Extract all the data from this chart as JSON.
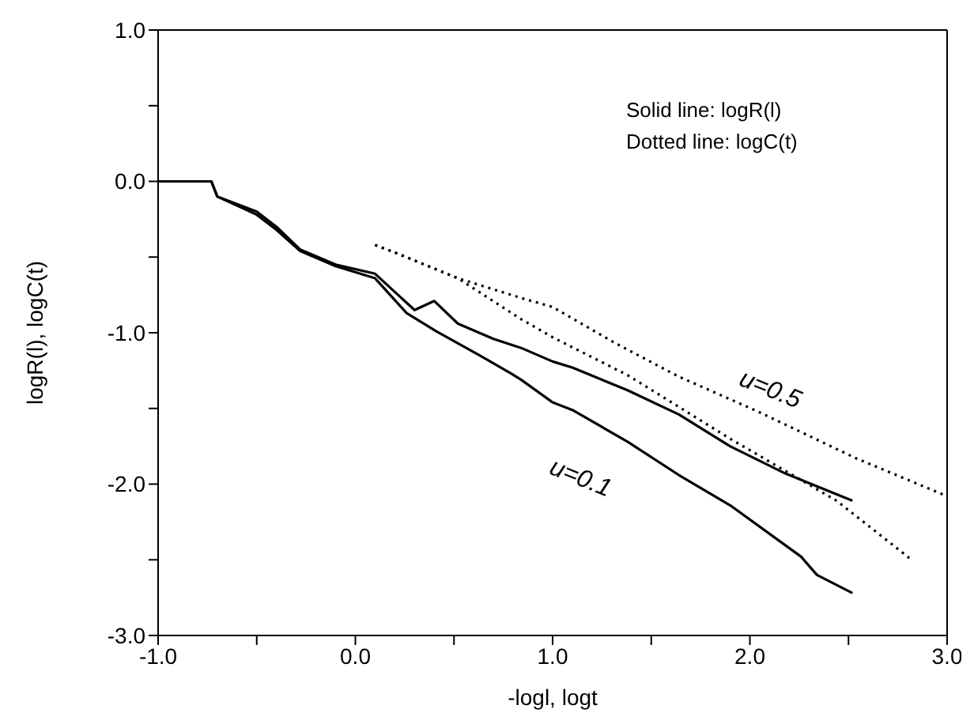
{
  "chart_data": {
    "type": "line",
    "xlabel": "-logl, logt",
    "ylabel": "logR(l), logC(t)",
    "xlim": [
      -1,
      3
    ],
    "ylim": [
      -3,
      1
    ],
    "xticks": [
      {
        "value": -1,
        "label": "-1.0"
      },
      {
        "value": -0.5,
        "label": null
      },
      {
        "value": 0,
        "label": "0.0"
      },
      {
        "value": 0.5,
        "label": null
      },
      {
        "value": 1,
        "label": "1.0"
      },
      {
        "value": 1.5,
        "label": null
      },
      {
        "value": 2,
        "label": "2.0"
      },
      {
        "value": 2.5,
        "label": null
      },
      {
        "value": 3,
        "label": "3.0"
      }
    ],
    "yticks": [
      {
        "value": -3,
        "label": "-3.0"
      },
      {
        "value": -2.5,
        "label": null
      },
      {
        "value": -2,
        "label": "-2.0"
      },
      {
        "value": -1.5,
        "label": null
      },
      {
        "value": -1,
        "label": "-1.0"
      },
      {
        "value": -0.5,
        "label": null
      },
      {
        "value": 0,
        "label": "0.0"
      },
      {
        "value": 0.5,
        "label": null
      },
      {
        "value": 1,
        "label": "1.0"
      }
    ],
    "marker": "none",
    "series": [
      {
        "color": "#000000",
        "line_style": "solid",
        "x": [
          -1,
          -0.73,
          -0.7,
          -0.6,
          -0.5,
          -0.4,
          -0.28,
          -0.1,
          0.1,
          0.3,
          0.4,
          0.52,
          0.7,
          0.84,
          1.0,
          1.1,
          1.38,
          1.64,
          1.9,
          2.18,
          2.52
        ],
        "values": [
          0,
          0,
          -0.1,
          -0.15,
          -0.2,
          -0.3,
          -0.45,
          -0.55,
          -0.61,
          -0.85,
          -0.79,
          -0.94,
          -1.04,
          -1.1,
          -1.19,
          -1.23,
          -1.38,
          -1.54,
          -1.75,
          -1.93,
          -2.11
        ]
      },
      {
        "color": "#000000",
        "line_style": "solid",
        "x": [
          -1,
          -0.73,
          -0.7,
          -0.6,
          -0.5,
          -0.4,
          -0.28,
          -0.1,
          0.1,
          0.26,
          0.41,
          0.63,
          0.79,
          0.84,
          1.0,
          1.1,
          1.38,
          1.64,
          1.9,
          2.26,
          2.34,
          2.52
        ],
        "values": [
          0,
          0,
          -0.1,
          -0.16,
          -0.22,
          -0.32,
          -0.46,
          -0.56,
          -0.64,
          -0.87,
          -0.99,
          -1.15,
          -1.27,
          -1.31,
          -1.46,
          -1.51,
          -1.72,
          -1.94,
          -2.14,
          -2.48,
          -2.6,
          -2.72
        ]
      },
      {
        "color": "#000000",
        "line_style": "dotted",
        "x": [
          0.1,
          0.22,
          0.52,
          0.84,
          1.0,
          1.32,
          1.64,
          2.04,
          2.54,
          3.0
        ],
        "values": [
          -0.42,
          -0.48,
          -0.64,
          -0.77,
          -0.83,
          -1.07,
          -1.29,
          -1.52,
          -1.83,
          -2.08
        ]
      },
      {
        "color": "#000000",
        "line_style": "dotted",
        "x": [
          0.1,
          0.22,
          0.52,
          0.84,
          1.0,
          1.38,
          1.9,
          2.44,
          2.82
        ],
        "values": [
          -0.42,
          -0.48,
          -0.64,
          -0.91,
          -1.03,
          -1.28,
          -1.7,
          -2.11,
          -2.5
        ]
      }
    ],
    "annotations": [
      "Solid line: logR(l)",
      "Dotted line: logC(t)",
      "u=0.5",
      "u=0.1"
    ]
  }
}
